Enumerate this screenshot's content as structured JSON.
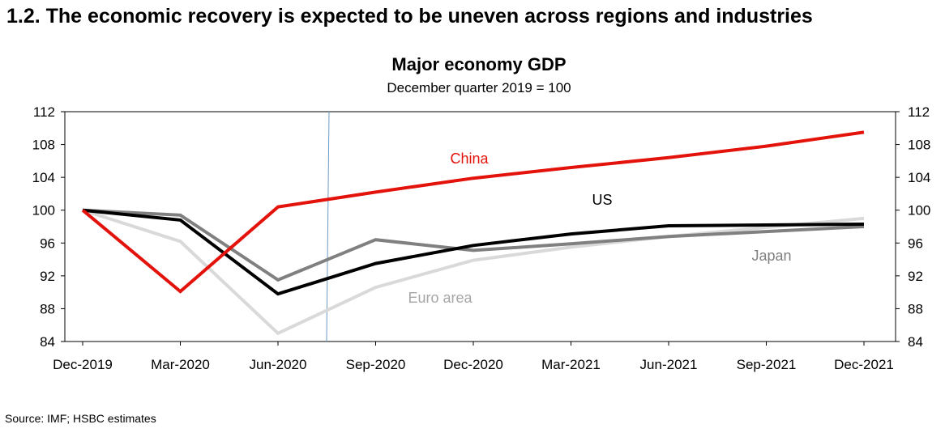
{
  "heading": "1.2. The economic recovery is expected to be uneven across regions and industries",
  "source": "Source: IMF; HSBC estimates",
  "chart_data": {
    "type": "line",
    "title": "Major economy GDP",
    "subtitle": "December quarter 2019 = 100",
    "xlabel": "",
    "ylabel": "",
    "categories": [
      "Dec-2019",
      "Mar-2020",
      "Jun-2020",
      "Sep-2020",
      "Dec-2020",
      "Mar-2021",
      "Jun-2021",
      "Sep-2021",
      "Dec-2021"
    ],
    "ylim": [
      84,
      112
    ],
    "yticks": [
      84,
      88,
      92,
      96,
      100,
      104,
      108,
      112
    ],
    "grid": false,
    "legend": "inline labels",
    "vertical_marker_after": "Jun-2020",
    "series": [
      {
        "name": "Euro area",
        "color": "#d9d9d9",
        "values": [
          100,
          96.2,
          85.0,
          90.6,
          93.9,
          95.5,
          96.8,
          97.9,
          99.0
        ]
      },
      {
        "name": "Japan",
        "color": "#808080",
        "values": [
          100,
          99.4,
          91.5,
          96.4,
          95.1,
          95.9,
          96.8,
          97.4,
          98.0
        ]
      },
      {
        "name": "US",
        "color": "#000000",
        "values": [
          100,
          98.8,
          89.8,
          93.5,
          95.7,
          97.1,
          98.1,
          98.2,
          98.3
        ]
      },
      {
        "name": "China",
        "color": "#e3120b",
        "values": [
          100,
          90.1,
          100.4,
          102.2,
          103.9,
          105.2,
          106.4,
          107.8,
          109.5
        ]
      }
    ]
  }
}
